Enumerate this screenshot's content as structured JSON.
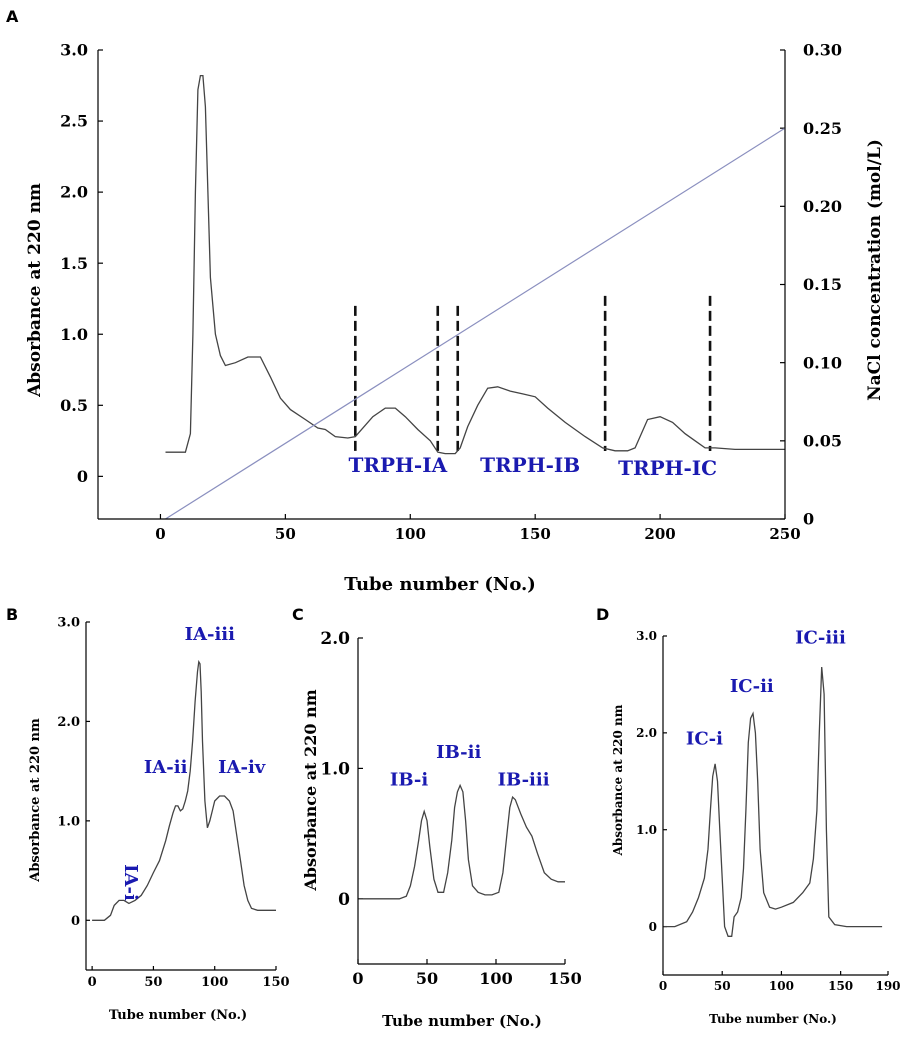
{
  "colors": {
    "peak_label": "#1a1ab0",
    "nacl_line": "#8a8fbf",
    "trace": "#444444"
  },
  "chart_data": [
    {
      "panel": "A",
      "type": "line",
      "xlabel": "Tube number (No.)",
      "ylabel": "Absorbance at 220 nm",
      "y2label": "NaCl concentration (mol/L)",
      "xlim": [
        -25,
        250
      ],
      "ylim": [
        -0.3,
        3.0
      ],
      "y2lim": [
        0,
        0.3
      ],
      "xticks": [
        0,
        50,
        100,
        150,
        200,
        250
      ],
      "yticks": [
        0,
        0.5,
        1.0,
        1.5,
        2.0,
        2.5,
        3.0
      ],
      "ytick_labels": [
        "0",
        "0.5",
        "1.0",
        "1.5",
        "2.0",
        "2.5",
        "3.0"
      ],
      "y2ticks": [
        0,
        0.05,
        0.1,
        0.15,
        0.2,
        0.25,
        0.3
      ],
      "y2tick_labels": [
        "0",
        "0.05",
        "0.10",
        "0.15",
        "0.20",
        "0.25",
        "0.30"
      ],
      "series": [
        {
          "role": "absorbance",
          "axis": "y",
          "x": [
            2,
            10,
            12,
            13,
            14,
            15,
            16,
            17,
            18,
            19,
            20,
            22,
            24,
            26,
            30,
            35,
            40,
            44,
            48,
            52,
            58,
            63,
            66,
            70,
            75,
            78,
            80,
            85,
            90,
            94,
            98,
            103,
            108,
            111,
            114,
            118,
            120,
            123,
            127,
            131,
            135,
            140,
            145,
            150,
            155,
            162,
            170,
            177,
            182,
            187,
            190,
            193,
            195,
            200,
            205,
            210,
            214,
            218,
            222,
            230,
            240,
            250
          ],
          "y": [
            0.17,
            0.17,
            0.3,
            1.0,
            2.0,
            2.72,
            2.82,
            2.82,
            2.6,
            2.0,
            1.4,
            1.0,
            0.85,
            0.78,
            0.8,
            0.84,
            0.84,
            0.7,
            0.55,
            0.47,
            0.4,
            0.34,
            0.33,
            0.28,
            0.27,
            0.28,
            0.32,
            0.42,
            0.48,
            0.48,
            0.42,
            0.33,
            0.25,
            0.17,
            0.16,
            0.16,
            0.2,
            0.35,
            0.5,
            0.62,
            0.63,
            0.6,
            0.58,
            0.56,
            0.48,
            0.38,
            0.28,
            0.2,
            0.18,
            0.18,
            0.2,
            0.32,
            0.4,
            0.42,
            0.38,
            0.3,
            0.25,
            0.2,
            0.2,
            0.19,
            0.19,
            0.19
          ]
        },
        {
          "role": "nacl_gradient",
          "axis": "y2",
          "x": [
            2,
            250
          ],
          "y": [
            0,
            0.25
          ]
        }
      ],
      "fraction_boundaries": [
        {
          "x": 78,
          "y_top": 1.2
        },
        {
          "x": 111,
          "y_top": 1.2
        },
        {
          "x": 119,
          "y_top": 1.2
        },
        {
          "x": 178,
          "y_top": 1.27
        },
        {
          "x": 220,
          "y_top": 1.27
        }
      ],
      "annotations": [
        {
          "text": "TRPH-IA",
          "x": 95,
          "y": 0.03
        },
        {
          "text": "TRPH-IB",
          "x": 148,
          "y": 0.03
        },
        {
          "text": "TRPH-IC",
          "x": 203,
          "y": 0.01
        }
      ]
    },
    {
      "panel": "B",
      "type": "line",
      "xlabel": "Tube number (No.)",
      "ylabel": "Absorbance at 220 nm",
      "xlim": [
        -5,
        150
      ],
      "ylim": [
        -0.5,
        3.0
      ],
      "xticks": [
        0,
        50,
        100,
        150
      ],
      "yticks": [
        0,
        1.0,
        2.0,
        3.0
      ],
      "ytick_labels": [
        "0",
        "1.0",
        "2.0",
        "3.0"
      ],
      "series": [
        {
          "role": "absorbance",
          "x": [
            0,
            10,
            15,
            18,
            22,
            26,
            30,
            35,
            40,
            45,
            50,
            55,
            60,
            63,
            66,
            68,
            70,
            72,
            74,
            76,
            78,
            80,
            82,
            84,
            86,
            87,
            88,
            89,
            90,
            92,
            94,
            96,
            98,
            100,
            104,
            108,
            112,
            115,
            118,
            121,
            124,
            127,
            130,
            135,
            140,
            145,
            150
          ],
          "y": [
            0,
            0,
            0.05,
            0.15,
            0.2,
            0.2,
            0.17,
            0.2,
            0.25,
            0.35,
            0.48,
            0.6,
            0.8,
            0.95,
            1.08,
            1.15,
            1.15,
            1.1,
            1.12,
            1.2,
            1.3,
            1.5,
            1.8,
            2.2,
            2.5,
            2.6,
            2.58,
            2.3,
            1.8,
            1.2,
            0.93,
            1.0,
            1.1,
            1.2,
            1.25,
            1.25,
            1.2,
            1.1,
            0.85,
            0.6,
            0.35,
            0.2,
            0.12,
            0.1,
            0.1,
            0.1,
            0.1
          ]
        }
      ],
      "annotations": [
        {
          "text": "IA-i",
          "x": 27,
          "y": 0.38,
          "rotated": true
        },
        {
          "text": "IA-ii",
          "x": 60,
          "y": 1.48
        },
        {
          "text": "IA-iii",
          "x": 96,
          "y": 2.82
        },
        {
          "text": "IA-iv",
          "x": 122,
          "y": 1.48
        }
      ]
    },
    {
      "panel": "C",
      "type": "line",
      "xlabel": "Tube number (No.)",
      "ylabel": "Absorbance at 220 nm",
      "xlim": [
        0,
        150
      ],
      "ylim": [
        -0.5,
        2.0
      ],
      "xticks": [
        0,
        50,
        100,
        150
      ],
      "yticks": [
        0,
        1.0,
        2.0
      ],
      "ytick_labels": [
        "0",
        "1.0",
        "2.0"
      ],
      "series": [
        {
          "role": "absorbance",
          "x": [
            0,
            30,
            35,
            38,
            41,
            44,
            46,
            48,
            50,
            52,
            55,
            58,
            62,
            65,
            68,
            70,
            72,
            74,
            76,
            78,
            80,
            83,
            87,
            92,
            97,
            102,
            105,
            108,
            110,
            112,
            114,
            118,
            122,
            126,
            130,
            135,
            140,
            145,
            150
          ],
          "y": [
            0,
            0,
            0.02,
            0.1,
            0.25,
            0.45,
            0.6,
            0.67,
            0.6,
            0.4,
            0.15,
            0.05,
            0.05,
            0.2,
            0.45,
            0.7,
            0.82,
            0.87,
            0.82,
            0.6,
            0.3,
            0.1,
            0.05,
            0.03,
            0.03,
            0.05,
            0.2,
            0.5,
            0.7,
            0.78,
            0.76,
            0.65,
            0.55,
            0.48,
            0.35,
            0.2,
            0.15,
            0.13,
            0.13
          ]
        }
      ],
      "annotations": [
        {
          "text": "IB-i",
          "x": 37,
          "y": 0.87
        },
        {
          "text": "IB-ii",
          "x": 73,
          "y": 1.08
        },
        {
          "text": "IB-iii",
          "x": 120,
          "y": 0.87
        }
      ]
    },
    {
      "panel": "D",
      "type": "line",
      "xlabel": "Tube number (No.)",
      "ylabel": "Absorbance at 220 nm",
      "xlim": [
        0,
        190
      ],
      "ylim": [
        -0.5,
        3.0
      ],
      "xticks": [
        0,
        50,
        100,
        150,
        190
      ],
      "xtick_labels": [
        "0",
        "50",
        "100",
        "150",
        "190"
      ],
      "yticks": [
        0,
        1.0,
        2.0,
        3.0
      ],
      "ytick_labels": [
        "0",
        "1.0",
        "2.0",
        "3.0"
      ],
      "series": [
        {
          "role": "absorbance",
          "x": [
            0,
            10,
            20,
            25,
            30,
            35,
            38,
            40,
            42,
            44,
            46,
            48,
            50,
            52,
            55,
            58,
            60,
            63,
            66,
            68,
            70,
            72,
            74,
            76,
            78,
            80,
            82,
            85,
            90,
            95,
            100,
            110,
            118,
            124,
            127,
            130,
            132,
            134,
            136,
            138,
            140,
            145,
            155,
            170,
            185
          ],
          "y": [
            0,
            0,
            0.05,
            0.15,
            0.3,
            0.5,
            0.8,
            1.2,
            1.55,
            1.68,
            1.5,
            1.0,
            0.5,
            0.0,
            -0.1,
            -0.1,
            0.1,
            0.15,
            0.3,
            0.6,
            1.2,
            1.9,
            2.15,
            2.2,
            2.0,
            1.5,
            0.8,
            0.35,
            0.2,
            0.18,
            0.2,
            0.25,
            0.35,
            0.45,
            0.7,
            1.2,
            2.0,
            2.68,
            2.4,
            1.0,
            0.1,
            0.02,
            0.0,
            0.0,
            0.0
          ]
        }
      ],
      "annotations": [
        {
          "text": "IC-i",
          "x": 35,
          "y": 1.88
        },
        {
          "text": "IC-ii",
          "x": 75,
          "y": 2.42
        },
        {
          "text": "IC-iii",
          "x": 133,
          "y": 2.92
        }
      ]
    }
  ]
}
